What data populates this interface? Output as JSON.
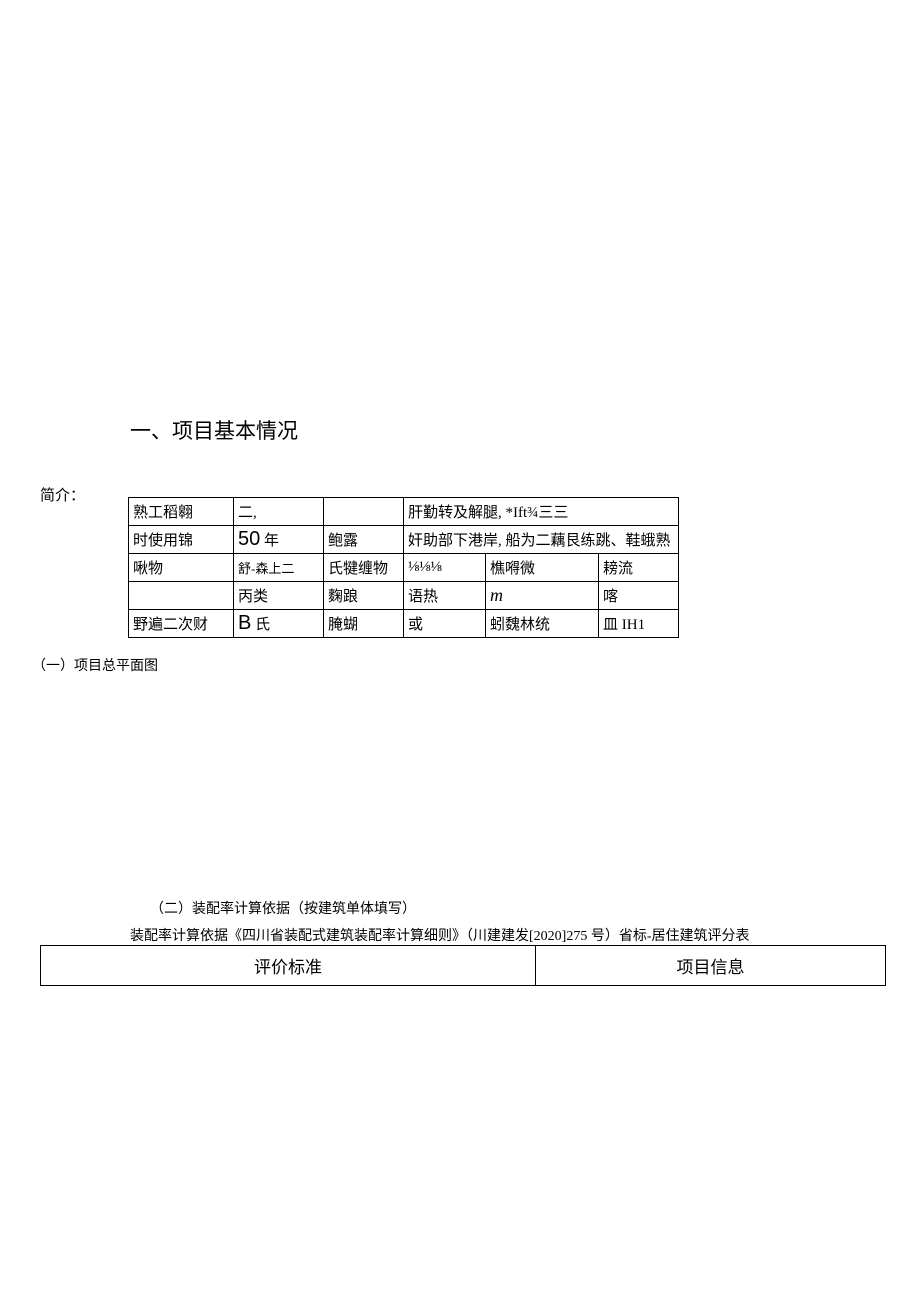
{
  "heading1": "一、项目基本情况",
  "introLabel": "简介：",
  "table1": {
    "rows": [
      [
        "熟工稻翱",
        "二,",
        "",
        {
          "text": "肝勤转及解腿, *Ift¾三三",
          "colspan": 3
        }
      ],
      [
        "时使用锦",
        {
          "text": "50",
          "suffix": " 年",
          "bigNum": true
        },
        "鲍露",
        {
          "text": "奸助部下港岸, 船为二藕艮练跳、鞋蛾熟",
          "colspan": 3
        }
      ],
      [
        "啾物",
        {
          "text": "舒-森上二",
          "small": true
        },
        "氏犍缠物",
        "⅛⅛⅛",
        "樵嘚微",
        "耪流"
      ],
      [
        "",
        "丙类",
        "麴踉",
        "语热",
        {
          "text": "m",
          "italic": true
        },
        "喀"
      ],
      [
        "野遍二次财",
        {
          "text": "B",
          "suffix": " 氏",
          "arialB": true
        },
        "腌蝴",
        "或",
        "蚓魏林统",
        "皿  IH1"
      ]
    ]
  },
  "subLabel1": "（一）项目总平面图",
  "subLabel2": "（二）装配率计算依据（按建筑单体填写）",
  "calcBasis": "装配率计算依据《四川省装配式建筑装配率计算细则》（川建建发[2020]275 号）省标-居住建筑评分表",
  "table2": {
    "headers": [
      "评价标准",
      "项目信息"
    ]
  },
  "colors": {
    "text": "#000000",
    "background": "#ffffff",
    "border": "#000000"
  },
  "fonts": {
    "body": "SimSun",
    "headingSize": 21,
    "bodySize": 15,
    "smallSize": 14
  }
}
